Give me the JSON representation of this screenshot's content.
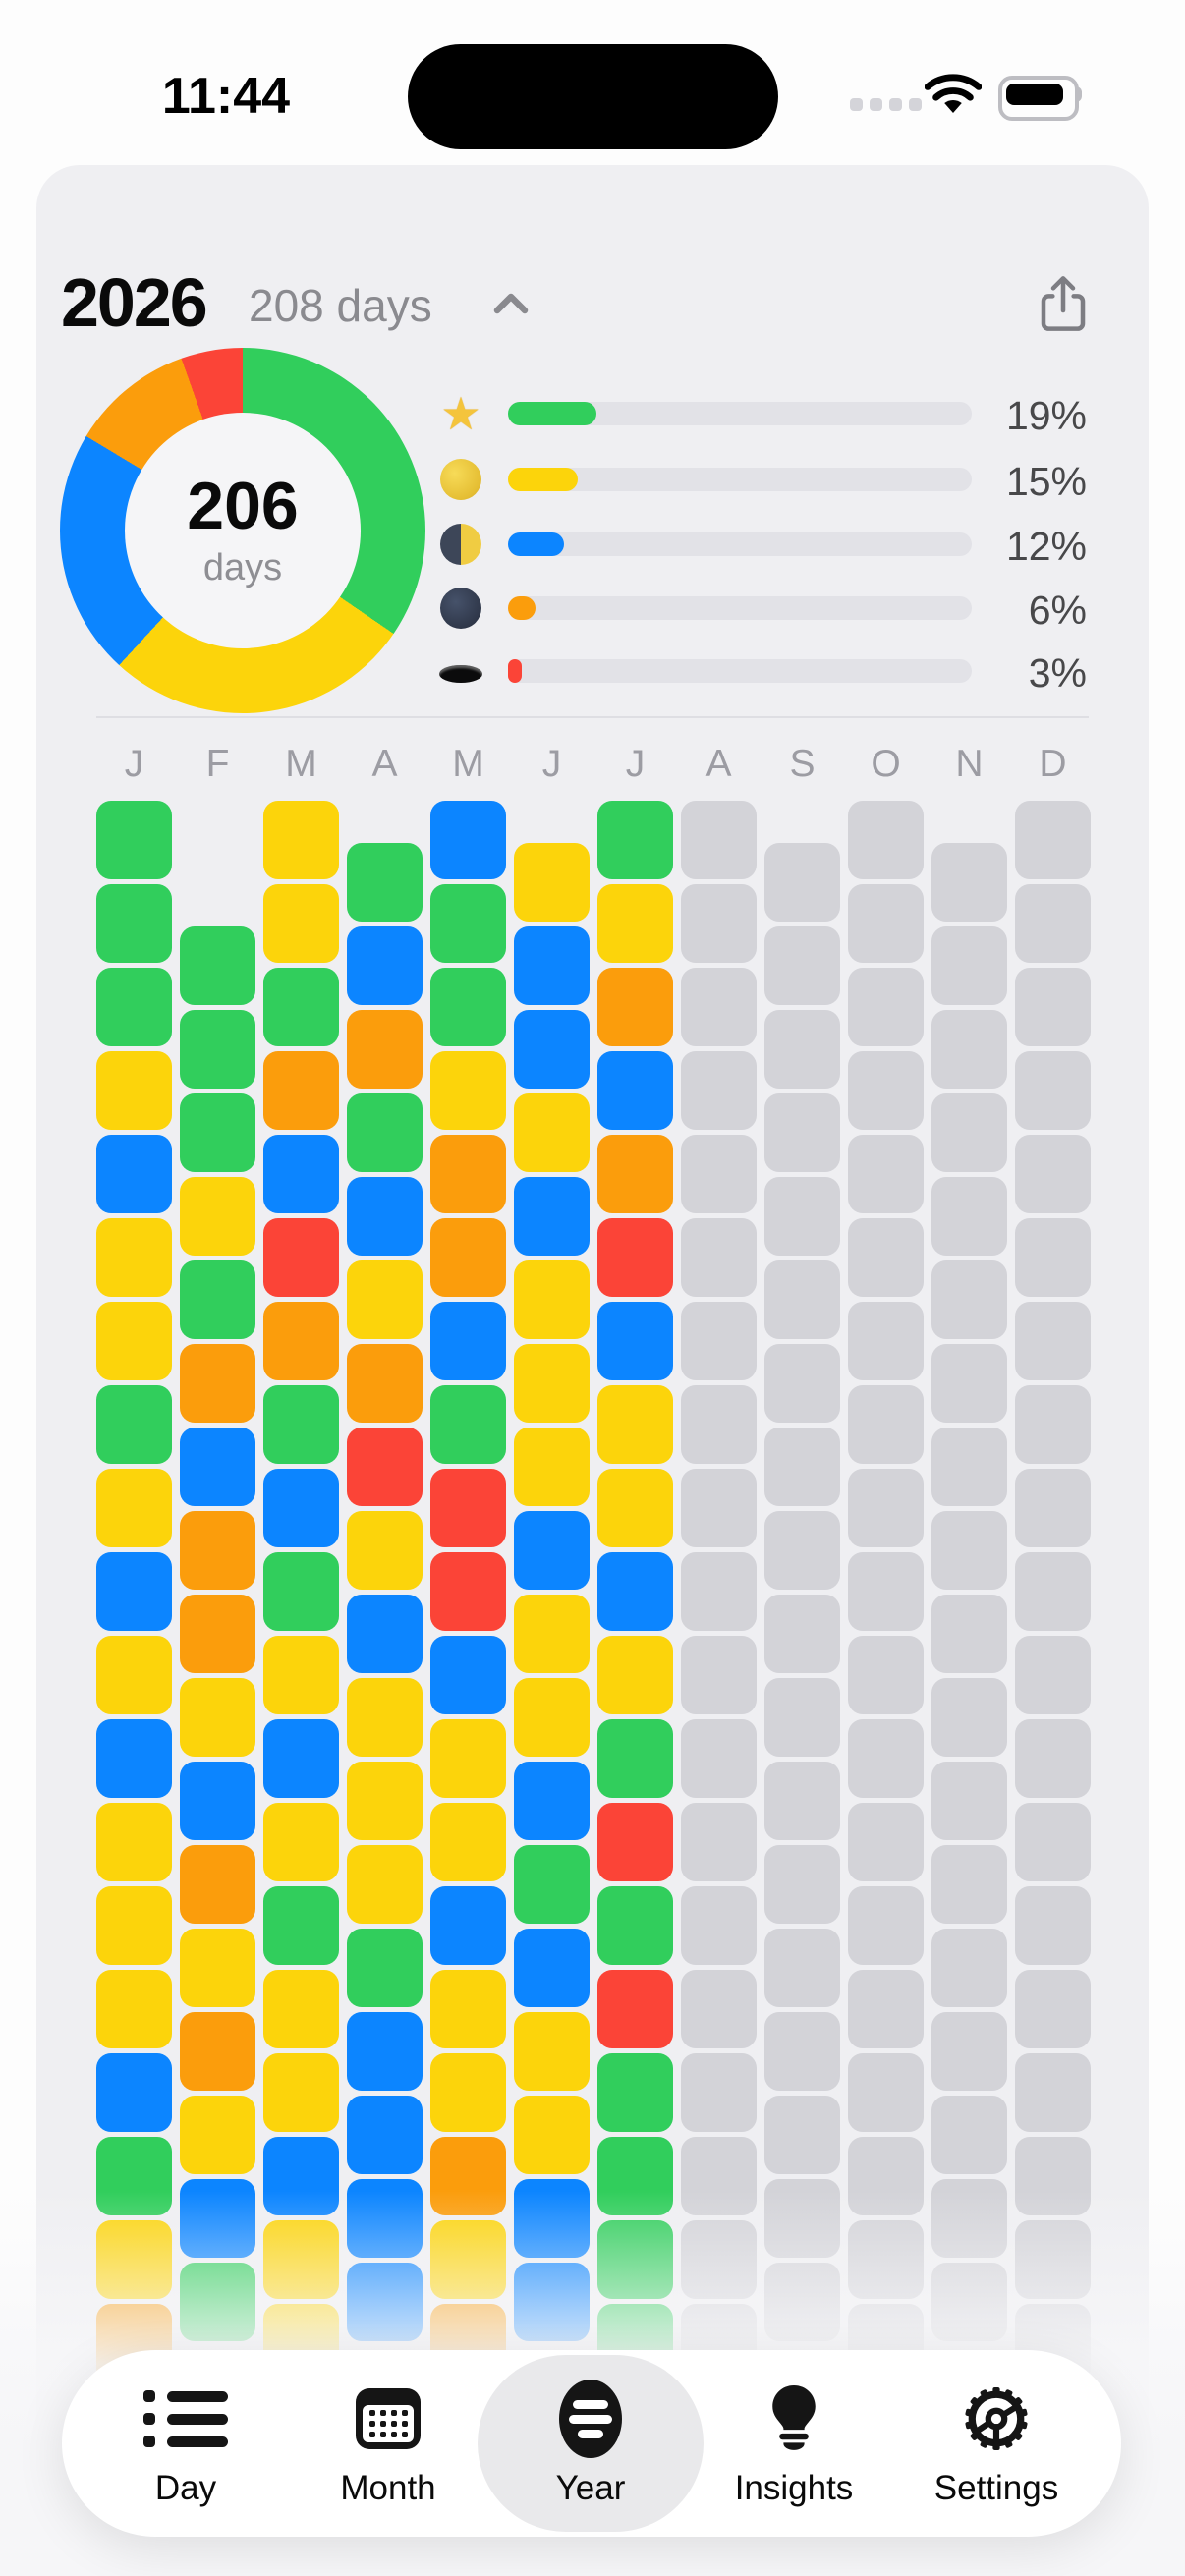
{
  "status_bar": {
    "time": "11:44"
  },
  "header": {
    "year": "2026",
    "days_label": "208 days",
    "collapse_icon": "chevron-up-icon",
    "share_icon": "share-icon"
  },
  "summary": {
    "center_value": "206",
    "center_label": "days",
    "legend": [
      {
        "icon": "star-icon",
        "percent": "19%",
        "value": 19,
        "color": "#31CE5C"
      },
      {
        "icon": "full-moon-icon",
        "percent": "15%",
        "value": 15,
        "color": "#FCD40B"
      },
      {
        "icon": "last-quarter-moon-icon",
        "percent": "12%",
        "value": 12,
        "color": "#0C85FF"
      },
      {
        "icon": "new-moon-icon",
        "percent": "6%",
        "value": 6,
        "color": "#FB9D0C"
      },
      {
        "icon": "hole-icon",
        "percent": "3%",
        "value": 3,
        "color": "#FB4437"
      }
    ]
  },
  "chart_data": [
    {
      "type": "pie",
      "title": "Mood distribution for 2026 (donut, 206 tracked days)",
      "categories": [
        "star",
        "full-moon",
        "last-quarter-moon",
        "new-moon",
        "hole"
      ],
      "values": [
        19,
        15,
        12,
        6,
        3
      ],
      "colors": [
        "#31CE5C",
        "#FCD40B",
        "#0C85FF",
        "#FB9D0C",
        "#FB4437"
      ],
      "center_label": "206 days",
      "start_angle_deg": 0,
      "direction": "clockwise"
    },
    {
      "type": "heatmap",
      "title": "Year in pixels — one colored square per day, columns = months",
      "legend": {
        "g": "green/star",
        "y": "yellow/full-moon",
        "b": "blue/last-quarter",
        "o": "orange/new-moon",
        "r": "red/hole",
        "x": "no entry (future)"
      }
    }
  ],
  "calendar": {
    "cell_colors": {
      "g": "#31CE5C",
      "y": "#FCD40B",
      "b": "#0C85FF",
      "o": "#FB9D0C",
      "r": "#FB4437",
      "x": "#D3D3D8"
    },
    "months": [
      {
        "label": "J",
        "offset_rows": 0,
        "cells": [
          "g",
          "g",
          "g",
          "y",
          "b",
          "y",
          "y",
          "g",
          "y",
          "b",
          "y",
          "b",
          "y",
          "y",
          "y",
          "b",
          "g",
          "y",
          "o"
        ]
      },
      {
        "label": "F",
        "offset_rows": 1.5,
        "cells": [
          "g",
          "g",
          "g",
          "y",
          "g",
          "o",
          "b",
          "o",
          "o",
          "y",
          "b",
          "o",
          "y",
          "o",
          "y",
          "b",
          "g"
        ]
      },
      {
        "label": "M",
        "offset_rows": 0,
        "cells": [
          "y",
          "y",
          "g",
          "o",
          "b",
          "r",
          "o",
          "g",
          "b",
          "g",
          "y",
          "b",
          "y",
          "g",
          "y",
          "y",
          "b",
          "y",
          "y"
        ]
      },
      {
        "label": "A",
        "offset_rows": 0.5,
        "cells": [
          "g",
          "b",
          "o",
          "g",
          "b",
          "y",
          "o",
          "r",
          "y",
          "b",
          "y",
          "y",
          "y",
          "g",
          "b",
          "b",
          "b",
          "b"
        ]
      },
      {
        "label": "M",
        "offset_rows": 0,
        "cells": [
          "b",
          "g",
          "g",
          "y",
          "o",
          "o",
          "b",
          "g",
          "r",
          "r",
          "b",
          "y",
          "y",
          "b",
          "y",
          "y",
          "o",
          "y",
          "o"
        ]
      },
      {
        "label": "J",
        "offset_rows": 0.5,
        "cells": [
          "y",
          "b",
          "b",
          "y",
          "b",
          "y",
          "y",
          "y",
          "b",
          "y",
          "y",
          "b",
          "g",
          "b",
          "y",
          "y",
          "b",
          "b"
        ]
      },
      {
        "label": "J",
        "offset_rows": 0,
        "cells": [
          "g",
          "y",
          "o",
          "b",
          "o",
          "r",
          "b",
          "y",
          "y",
          "b",
          "y",
          "g",
          "r",
          "g",
          "r",
          "g",
          "g",
          "g",
          "g"
        ]
      },
      {
        "label": "A",
        "offset_rows": 0,
        "cells": [
          "x",
          "x",
          "x",
          "x",
          "x",
          "x",
          "x",
          "x",
          "x",
          "x",
          "x",
          "x",
          "x",
          "x",
          "x",
          "x",
          "x",
          "x",
          "x"
        ]
      },
      {
        "label": "S",
        "offset_rows": 0.5,
        "cells": [
          "x",
          "x",
          "x",
          "x",
          "x",
          "x",
          "x",
          "x",
          "x",
          "x",
          "x",
          "x",
          "x",
          "x",
          "x",
          "x",
          "x",
          "x"
        ]
      },
      {
        "label": "O",
        "offset_rows": 0,
        "cells": [
          "x",
          "x",
          "x",
          "x",
          "x",
          "x",
          "x",
          "x",
          "x",
          "x",
          "x",
          "x",
          "x",
          "x",
          "x",
          "x",
          "x",
          "x",
          "x"
        ]
      },
      {
        "label": "N",
        "offset_rows": 0.5,
        "cells": [
          "x",
          "x",
          "x",
          "x",
          "x",
          "x",
          "x",
          "x",
          "x",
          "x",
          "x",
          "x",
          "x",
          "x",
          "x",
          "x",
          "x",
          "x"
        ]
      },
      {
        "label": "D",
        "offset_rows": 0,
        "cells": [
          "x",
          "x",
          "x",
          "x",
          "x",
          "x",
          "x",
          "x",
          "x",
          "x",
          "x",
          "x",
          "x",
          "x",
          "x",
          "x",
          "x",
          "x",
          "x"
        ]
      }
    ]
  },
  "tab_bar": {
    "active": "year",
    "tabs": [
      {
        "id": "day",
        "label": "Day",
        "icon": "list-icon"
      },
      {
        "id": "month",
        "label": "Month",
        "icon": "calendar-icon"
      },
      {
        "id": "year",
        "label": "Year",
        "icon": "year-oval-icon"
      },
      {
        "id": "insights",
        "label": "Insights",
        "icon": "lightbulb-icon"
      },
      {
        "id": "settings",
        "label": "Settings",
        "icon": "gear-icon"
      }
    ]
  }
}
